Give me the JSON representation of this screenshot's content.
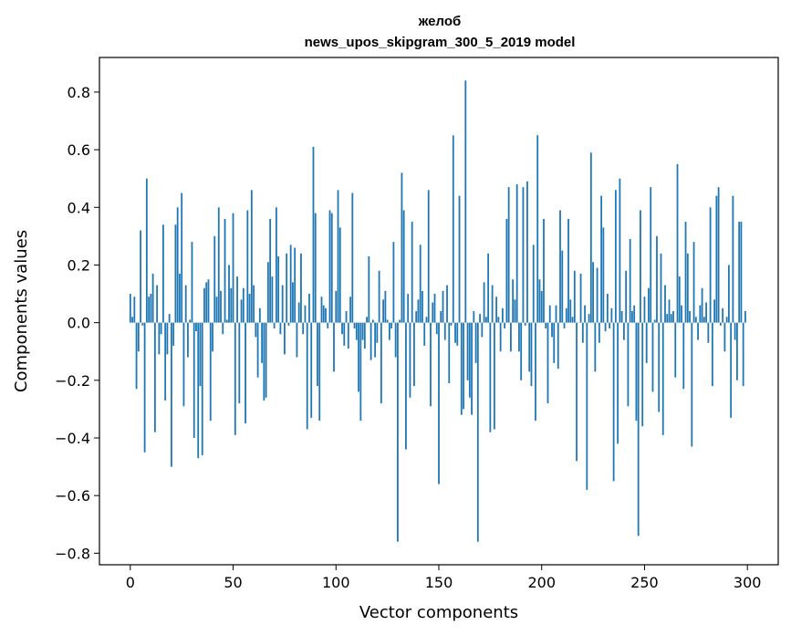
{
  "chart_data": {
    "type": "bar",
    "title_line1": "желоб",
    "title_line2": "news_upos_skipgram_300_5_2019 model",
    "xlabel": "Vector components",
    "ylabel": "Components values",
    "xlim": [
      -15,
      315
    ],
    "ylim": [
      -0.84,
      0.92
    ],
    "xticks": [
      0,
      50,
      100,
      150,
      200,
      250,
      300
    ],
    "yticks": [
      -0.8,
      -0.6,
      -0.4,
      -0.2,
      0.0,
      0.2,
      0.4,
      0.6,
      0.8
    ],
    "ytick_labels": [
      "−0.8",
      "−0.6",
      "−0.4",
      "−0.2",
      "0.0",
      "0.2",
      "0.4",
      "0.6",
      "0.8"
    ],
    "bar_color": "#1f77b4",
    "values": [
      0.1,
      0.02,
      0.09,
      -0.23,
      -0.1,
      0.32,
      -0.01,
      -0.45,
      0.5,
      0.09,
      0.1,
      0.17,
      -0.38,
      0.13,
      -0.11,
      -0.04,
      0.34,
      -0.27,
      -0.11,
      0.03,
      -0.5,
      -0.08,
      0.34,
      0.4,
      0.17,
      0.45,
      -0.29,
      0.13,
      -0.12,
      0.01,
      0.28,
      -0.4,
      -0.03,
      -0.47,
      -0.22,
      -0.46,
      0.12,
      0.14,
      0.15,
      -0.34,
      -0.1,
      0.3,
      0.09,
      0.4,
      0.11,
      -0.04,
      0.36,
      0.01,
      0.2,
      0.12,
      0.38,
      -0.39,
      0.16,
      -0.28,
      0.08,
      0.12,
      -0.35,
      0.39,
      0.1,
      0.46,
      0.13,
      -0.05,
      -0.19,
      0.05,
      -0.14,
      -0.27,
      -0.26,
      0.21,
      0.36,
      0.16,
      -0.02,
      0.4,
      0.23,
      -0.04,
      0.13,
      -0.11,
      0.24,
      -0.01,
      0.27,
      0.14,
      0.26,
      -0.12,
      0.07,
      0.24,
      -0.04,
      0.06,
      -0.37,
      0.1,
      -0.33,
      0.61,
      0.38,
      -0.22,
      -0.34,
      0.09,
      0.06,
      0.05,
      -0.02,
      0.39,
      0.38,
      -0.17,
      0.11,
      0.46,
      0.33,
      -0.04,
      -0.08,
      0.04,
      -0.09,
      0.09,
      0.45,
      -0.02,
      -0.06,
      -0.24,
      -0.34,
      -0.06,
      -0.09,
      0.02,
      0.23,
      -0.13,
      0.01,
      -0.12,
      -0.07,
      0.18,
      -0.28,
      0.08,
      0.11,
      0.01,
      -0.06,
      -0.02,
      0.28,
      -0.12,
      -0.76,
      0.01,
      0.52,
      0.39,
      -0.44,
      0.1,
      -0.26,
      0.35,
      -0.22,
      0.04,
      0.08,
      0.27,
      0.11,
      -0.08,
      0.02,
      0.46,
      -0.29,
      0.07,
      0.1,
      -0.04,
      -0.56,
      0.04,
      0.11,
      -0.06,
      0.13,
      -0.21,
      -0.01,
      0.65,
      -0.07,
      -0.08,
      0.44,
      -0.32,
      -0.3,
      0.84,
      -0.2,
      -0.26,
      -0.32,
      0.04,
      -0.14,
      -0.76,
      0.03,
      -0.05,
      0.14,
      0.02,
      0.24,
      -0.38,
      0.13,
      -0.37,
      0.09,
      0.02,
      -0.1,
      0.05,
      -0.02,
      0.36,
      0.47,
      -0.1,
      0.15,
      0.08,
      0.48,
      -0.1,
      -0.2,
      0.47,
      -0.01,
      0.49,
      -0.17,
      -0.22,
      0.27,
      -0.34,
      0.65,
      0.15,
      0.11,
      0.36,
      -0.02,
      -0.28,
      0.06,
      -0.05,
      -0.14,
      0.06,
      -0.16,
      0.39,
      0.25,
      -0.02,
      0.05,
      0.36,
      0.08,
      0.02,
      0.18,
      -0.48,
      0.0,
      0.17,
      -0.07,
      0.06,
      -0.58,
      0.03,
      0.59,
      0.21,
      -0.17,
      0.19,
      -0.07,
      0.44,
      0.33,
      -0.03,
      0.1,
      -0.02,
      0.05,
      -0.55,
      0.46,
      -0.42,
      0.5,
      0.04,
      -0.06,
      0.18,
      -0.29,
      0.29,
      0.04,
      0.06,
      -0.34,
      -0.74,
      0.39,
      -0.36,
      0.09,
      -0.14,
      0.12,
      0.47,
      -0.24,
      0.01,
      0.3,
      -0.31,
      0.24,
      -0.39,
      0.13,
      0.03,
      0.08,
      0.03,
      0.04,
      -0.19,
      0.55,
      0.16,
      0.06,
      -0.23,
      0.35,
      0.24,
      0.04,
      -0.43,
      0.28,
      0.02,
      -0.06,
      0.06,
      0.12,
      0.02,
      0.07,
      -0.07,
      0.4,
      -0.22,
      0.08,
      0.44,
      0.47,
      -0.01,
      0.05,
      -0.1,
      0.02,
      0.2,
      -0.33,
      0.44,
      -0.06,
      -0.2,
      0.35,
      0.35,
      -0.22,
      0.04
    ]
  }
}
